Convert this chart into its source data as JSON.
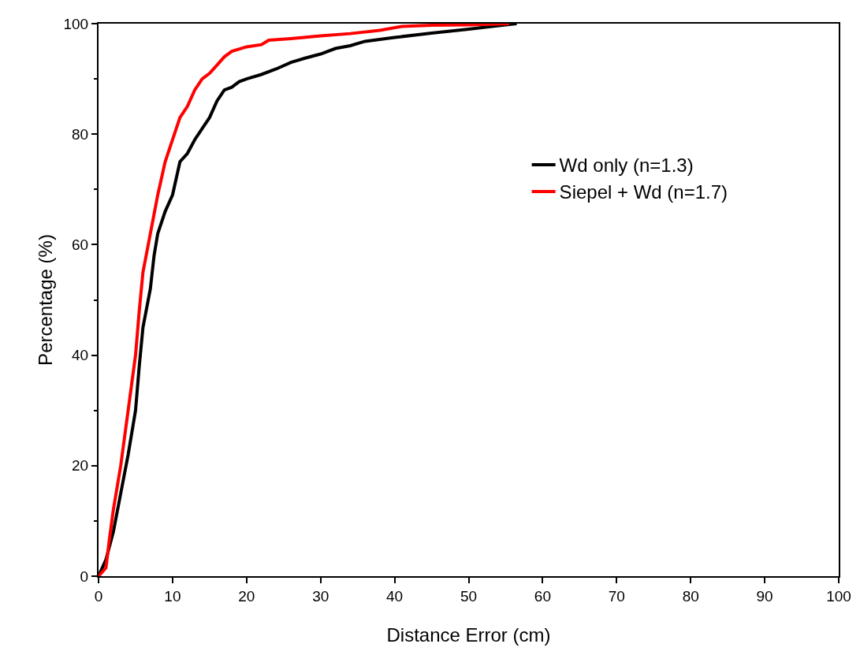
{
  "chart_data": {
    "type": "line",
    "xlabel": "Distance Error (cm)",
    "ylabel": "Percentage (%)",
    "xlim": [
      0,
      100
    ],
    "xticks": [
      0,
      10,
      20,
      30,
      40,
      50,
      60,
      70,
      80,
      90,
      100
    ],
    "ylim": [
      0,
      100
    ],
    "yticks": [
      0,
      20,
      40,
      60,
      80,
      100
    ],
    "grid": false,
    "legend": "right",
    "marker": "none",
    "line_style": "solid",
    "series": [
      {
        "name": "Wd only (n=1.3)",
        "color": "#000000",
        "x": [
          0,
          0.5,
          1,
          2,
          3,
          4,
          5,
          5.5,
          6,
          7,
          7.5,
          8,
          9,
          10,
          11,
          12,
          13,
          14,
          15,
          16,
          17,
          18,
          19,
          20,
          22,
          24,
          26,
          28,
          30,
          32,
          34,
          36,
          40,
          45,
          50,
          55,
          56.5
        ],
        "values": [
          0,
          1.5,
          3,
          8,
          15,
          22,
          30,
          38,
          45,
          52,
          58,
          62,
          66,
          69,
          75,
          76.5,
          79,
          81,
          83,
          86,
          88,
          88.5,
          89.5,
          90,
          90.8,
          91.8,
          93,
          93.8,
          94.5,
          95.5,
          96,
          96.8,
          97.5,
          98.3,
          99,
          99.8,
          100
        ]
      },
      {
        "name": "Siepel + Wd (n=1.7)",
        "color": "#ff0000",
        "x": [
          0,
          1,
          1.5,
          2,
          3,
          4,
          5,
          5.5,
          6,
          7,
          8,
          9,
          10,
          11,
          12,
          13,
          14,
          15,
          16,
          17,
          18,
          20,
          22,
          23,
          26,
          30,
          34,
          38,
          41,
          45,
          50,
          55.5
        ],
        "values": [
          0,
          1.5,
          7,
          12,
          20,
          30,
          40,
          48,
          55,
          62,
          69,
          75,
          79,
          83,
          85,
          88,
          90,
          91,
          92.5,
          94,
          95,
          95.8,
          96.2,
          97,
          97.3,
          97.8,
          98.2,
          98.8,
          99.5,
          99.7,
          99.8,
          100
        ]
      }
    ]
  }
}
